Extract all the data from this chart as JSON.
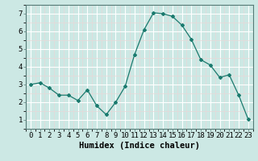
{
  "x": [
    0,
    1,
    2,
    3,
    4,
    5,
    6,
    7,
    8,
    9,
    10,
    11,
    12,
    13,
    14,
    15,
    16,
    17,
    18,
    19,
    20,
    21,
    22,
    23
  ],
  "y": [
    3.0,
    3.1,
    2.8,
    2.4,
    2.4,
    2.1,
    2.7,
    1.8,
    1.3,
    2.0,
    2.9,
    4.7,
    6.1,
    7.05,
    7.0,
    6.85,
    6.35,
    5.55,
    4.4,
    4.1,
    3.4,
    3.55,
    2.4,
    1.05
  ],
  "line_color": "#1a7a6e",
  "marker": "D",
  "marker_size": 2.0,
  "bg_color": "#cce8e4",
  "grid_color": "#ffffff",
  "grid_minor_color": "#e8d8d8",
  "xlabel": "Humidex (Indice chaleur)",
  "xlabel_fontsize": 7.5,
  "tick_fontsize": 6.5,
  "xlim": [
    -0.5,
    23.5
  ],
  "ylim": [
    0.5,
    7.5
  ],
  "yticks": [
    1,
    2,
    3,
    4,
    5,
    6,
    7
  ],
  "xticks": [
    0,
    1,
    2,
    3,
    4,
    5,
    6,
    7,
    8,
    9,
    10,
    11,
    12,
    13,
    14,
    15,
    16,
    17,
    18,
    19,
    20,
    21,
    22,
    23
  ]
}
